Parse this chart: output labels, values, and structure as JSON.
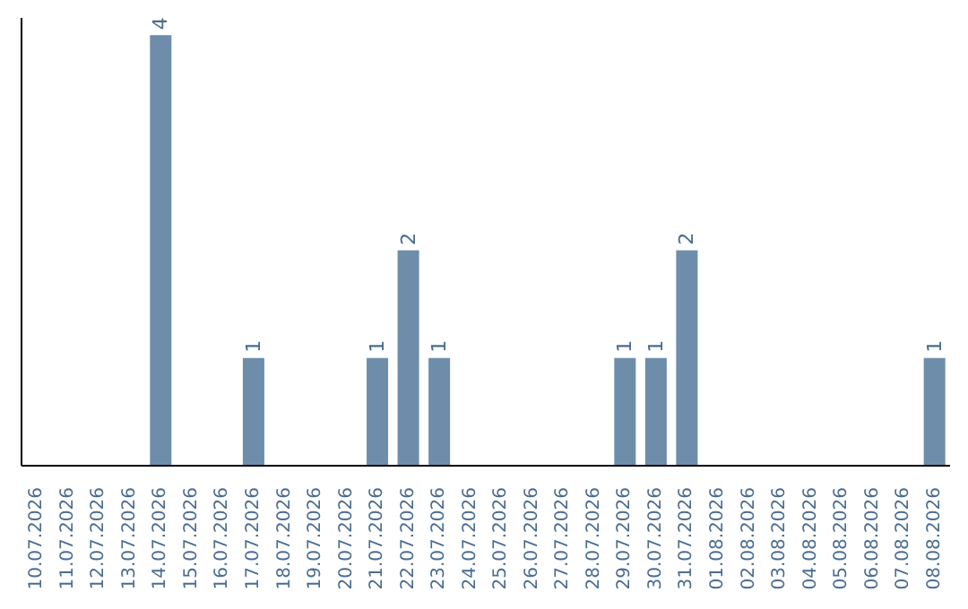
{
  "chart_data": {
    "type": "bar",
    "categories": [
      "10.07.2026",
      "11.07.2026",
      "12.07.2026",
      "13.07.2026",
      "14.07.2026",
      "15.07.2026",
      "16.07.2026",
      "17.07.2026",
      "18.07.2026",
      "19.07.2026",
      "20.07.2026",
      "21.07.2026",
      "22.07.2026",
      "23.07.2026",
      "24.07.2026",
      "25.07.2026",
      "26.07.2026",
      "27.07.2026",
      "28.07.2026",
      "29.07.2026",
      "30.07.2026",
      "31.07.2026",
      "01.08.2026",
      "02.08.2026",
      "03.08.2026",
      "04.08.2026",
      "05.08.2026",
      "06.08.2026",
      "07.08.2026",
      "08.08.2026"
    ],
    "values": [
      null,
      null,
      null,
      null,
      4,
      null,
      null,
      1,
      null,
      null,
      null,
      1,
      2,
      1,
      null,
      null,
      null,
      null,
      null,
      1,
      1,
      2,
      null,
      null,
      null,
      null,
      null,
      null,
      null,
      1
    ],
    "color": "#6d8dab",
    "data_labels": true
  }
}
